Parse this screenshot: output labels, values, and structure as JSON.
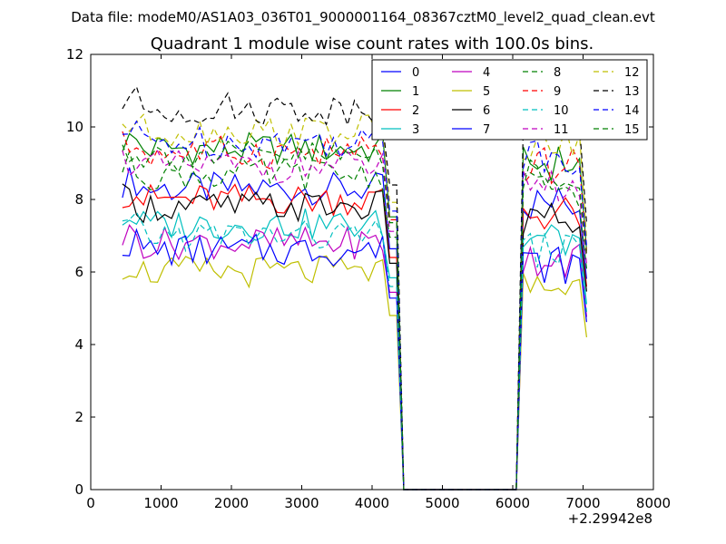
{
  "suptitle": "Data file: modeM0/AS1A03_036T01_9000001164_08367cztM0_level2_quad_clean.evt",
  "x_offset_label": "+2.29942e8",
  "chart_data": {
    "type": "line",
    "title": "Quadrant 1 module wise count rates with 100.0s bins.",
    "xlabel": "",
    "ylabel": "",
    "xlim": [
      0,
      8000
    ],
    "ylim": [
      0,
      12
    ],
    "x_ticks": [
      "0",
      "1000",
      "2000",
      "3000",
      "4000",
      "5000",
      "6000",
      "7000",
      "8000"
    ],
    "y_ticks": [
      "0",
      "2",
      "4",
      "6",
      "8",
      "10",
      "12"
    ],
    "grid": false,
    "legend_position": "top-right",
    "legend_columns": 4,
    "x_segments": [
      {
        "start": 450,
        "end": 4350,
        "step": 100
      },
      {
        "start": 4450,
        "end": 6050,
        "step": 100
      },
      {
        "start": 6150,
        "end": 7050,
        "step": 100
      }
    ],
    "series": [
      {
        "name": "0",
        "color": "#0000ff",
        "dash": "solid",
        "base": 8.3
      },
      {
        "name": "1",
        "color": "#008000",
        "dash": "solid",
        "base": 9.4
      },
      {
        "name": "2",
        "color": "#ff0000",
        "dash": "solid",
        "base": 8.0
      },
      {
        "name": "3",
        "color": "#00bfbf",
        "dash": "solid",
        "base": 7.3
      },
      {
        "name": "4",
        "color": "#bf00bf",
        "dash": "solid",
        "base": 6.8
      },
      {
        "name": "5",
        "color": "#bfbf00",
        "dash": "solid",
        "base": 6.0
      },
      {
        "name": "6",
        "color": "#000000",
        "dash": "solid",
        "base": 7.8
      },
      {
        "name": "7",
        "color": "#0000ff",
        "dash": "solid",
        "base": 6.6
      },
      {
        "name": "8",
        "color": "#008000",
        "dash": "dashed",
        "base": 8.7
      },
      {
        "name": "9",
        "color": "#ff0000",
        "dash": "dashed",
        "base": 9.3
      },
      {
        "name": "10",
        "color": "#00bfbf",
        "dash": "dashed",
        "base": 7.0
      },
      {
        "name": "11",
        "color": "#bf00bf",
        "dash": "dashed",
        "base": 8.9
      },
      {
        "name": "12",
        "color": "#bfbf00",
        "dash": "dashed",
        "base": 9.9
      },
      {
        "name": "13",
        "color": "#000000",
        "dash": "dashed",
        "base": 10.5
      },
      {
        "name": "14",
        "color": "#0000ff",
        "dash": "dashed",
        "base": 9.6
      },
      {
        "name": "15",
        "color": "#008000",
        "dash": "dashed",
        "base": 9.2
      }
    ]
  }
}
